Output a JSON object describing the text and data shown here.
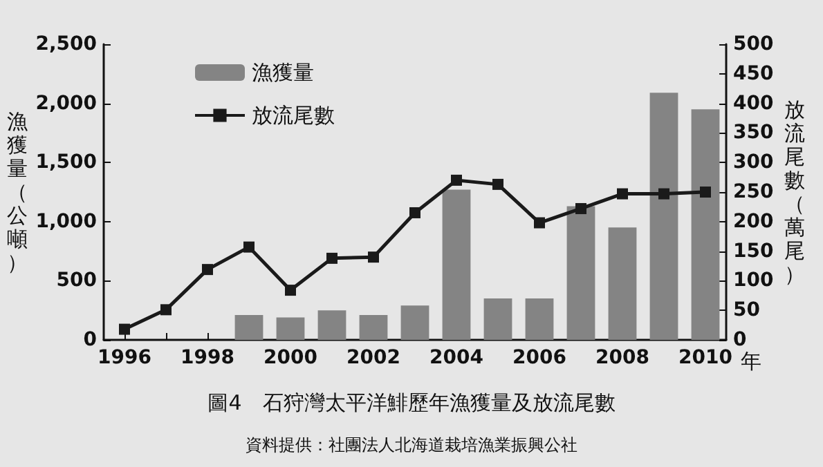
{
  "chart_data": {
    "type": "bar",
    "title": "圖4　石狩灣太平洋鯡歷年漁獲量及放流尾數",
    "xlabel": "年",
    "ylabel": "漁獲量（公噸）",
    "y2label": "放流尾數（萬尾）",
    "annotations": [
      "資料提供：社團法人北海道栽培漁業振興公社"
    ],
    "categories": [
      "1996",
      null,
      "1998",
      null,
      "2000",
      null,
      "2002",
      null,
      "2004",
      null,
      "2006",
      null,
      "2008",
      null,
      "2010"
    ],
    "series": [
      {
        "name": "漁獲量",
        "color": "#848484",
        "values": [
          null,
          null,
          null,
          210,
          190,
          250,
          210,
          290,
          1270,
          350,
          350,
          1130,
          950,
          2090,
          1950
        ]
      },
      {
        "name": "放流尾數",
        "type": "line",
        "axis": "y2",
        "color": "#1a1a1a",
        "marker": "square",
        "values": [
          18,
          51,
          119,
          157,
          84,
          138,
          140,
          215,
          270,
          263,
          198,
          222,
          247,
          247,
          250
        ]
      }
    ],
    "ylim": [
      0,
      2500
    ],
    "yticks": [
      {
        "value": 0,
        "label": "0"
      },
      {
        "value": 500,
        "label": "500"
      },
      {
        "value": 1000,
        "label": "1,000"
      },
      {
        "value": 1500,
        "label": "1,500"
      },
      {
        "value": 2000,
        "label": "2,000"
      },
      {
        "value": 2500,
        "label": "2,500"
      }
    ],
    "y2lim": [
      0,
      500
    ],
    "y2ticks": [
      0,
      50,
      100,
      150,
      200,
      250,
      300,
      350,
      400,
      450,
      500
    ],
    "legend": "top left",
    "grid": false
  }
}
